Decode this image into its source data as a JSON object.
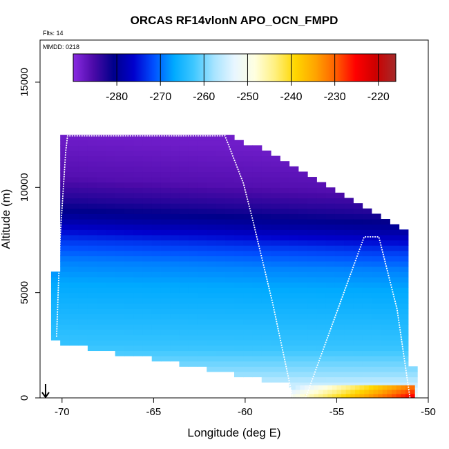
{
  "chart_data": {
    "type": "heatmap",
    "title": "ORCAS RF14vlonN APO_OCN_FMPD",
    "annotation_flts": "Flts: 14",
    "annotation_mmdd": "MMDD: 0218",
    "xlabel": "Longitude (deg E)",
    "ylabel": "Altitude (m)",
    "xlim": [
      -71.2,
      -50
    ],
    "ylim": [
      0,
      17000
    ],
    "xticks": [
      -70,
      -65,
      -60,
      -55,
      -50
    ],
    "yticks": [
      0,
      5000,
      10000,
      15000
    ],
    "colorbar": {
      "min": -290,
      "max": -216,
      "ticks": [
        -280,
        -270,
        -260,
        -250,
        -240,
        -230,
        -220
      ],
      "colors": [
        "#8a2be2",
        "#4b0aa8",
        "#00008b",
        "#0000cd",
        "#0050ff",
        "#00aaff",
        "#40c8ff",
        "#a8e4ff",
        "#e8f6ff",
        "#ffffe0",
        "#fff080",
        "#ffd700",
        "#ffa500",
        "#ff6000",
        "#ff0000",
        "#cc0000",
        "#a52a2a"
      ]
    },
    "field_profile": [
      {
        "alt": 0,
        "value": -252
      },
      {
        "alt": 1000,
        "value": -258
      },
      {
        "alt": 2500,
        "value": -263
      },
      {
        "alt": 4000,
        "value": -265
      },
      {
        "alt": 5500,
        "value": -267
      },
      {
        "alt": 6500,
        "value": -269
      },
      {
        "alt": 7500,
        "value": -273
      },
      {
        "alt": 8500,
        "value": -279
      },
      {
        "alt": 9500,
        "value": -283
      },
      {
        "alt": 10500,
        "value": -286
      },
      {
        "alt": 11500,
        "value": -287
      },
      {
        "alt": 12500,
        "value": -288
      }
    ],
    "surface_layer": {
      "alt_max": 600,
      "x_start": -57.5,
      "x_end": -50.9,
      "value_start": -250,
      "value_end": -225
    },
    "flight_track": [
      {
        "x": -70.3,
        "y": 2900
      },
      {
        "x": -70.1,
        "y": 7700
      },
      {
        "x": -69.8,
        "y": 11700
      },
      {
        "x": -69.7,
        "y": 12450
      },
      {
        "x": -61.1,
        "y": 12450
      },
      {
        "x": -60.1,
        "y": 10200
      },
      {
        "x": -59.6,
        "y": 8500
      },
      {
        "x": -58.5,
        "y": 4500
      },
      {
        "x": -57.4,
        "y": 0
      },
      {
        "x": -56.7,
        "y": 0
      },
      {
        "x": -53.5,
        "y": 7650
      },
      {
        "x": -52.7,
        "y": 7650
      },
      {
        "x": -51.7,
        "y": 4200
      },
      {
        "x": -51.0,
        "y": 0
      }
    ],
    "arrow_x": -70.9
  }
}
